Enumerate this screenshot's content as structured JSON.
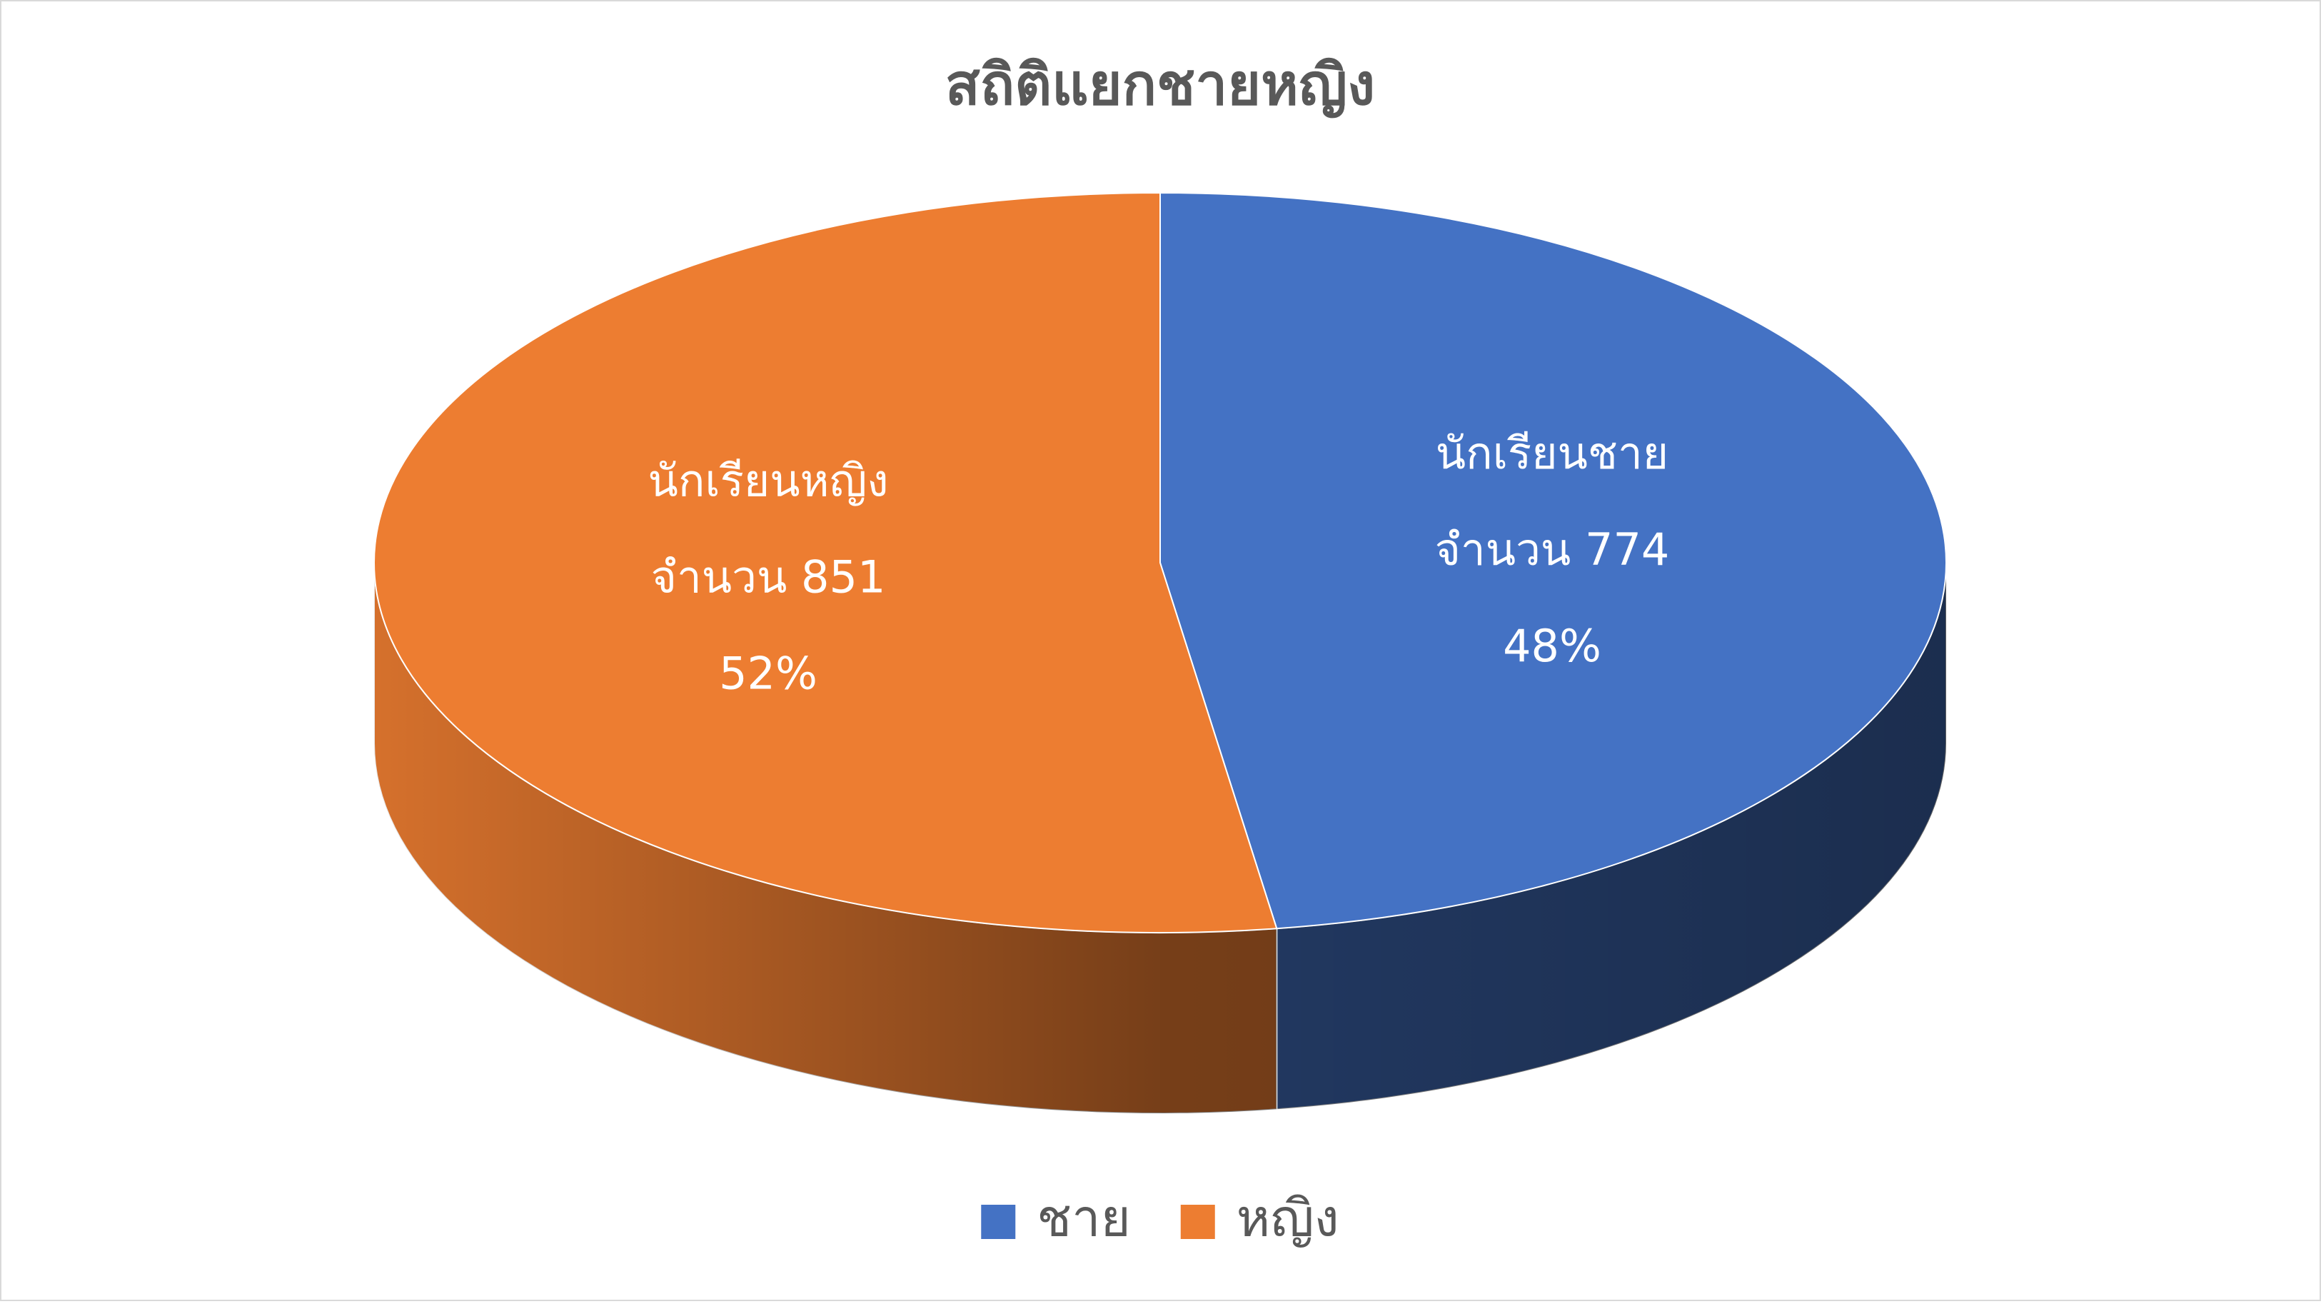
{
  "chart_data": {
    "type": "pie3d",
    "title": "สถิติแยกชายหญิง",
    "categories": [
      "ชาย",
      "หญิง"
    ],
    "values": [
      774,
      851
    ],
    "value_labels": [
      "จำนวน 774",
      "จำนวน 851"
    ],
    "data_label_names": [
      "นักเรียนชาย",
      "นักเรียนหญิง"
    ],
    "percents": [
      48,
      52
    ],
    "percent_labels": [
      "48%",
      "52%"
    ],
    "colors": [
      "#4472c4",
      "#ed7d31"
    ],
    "legend": "bottom"
  }
}
